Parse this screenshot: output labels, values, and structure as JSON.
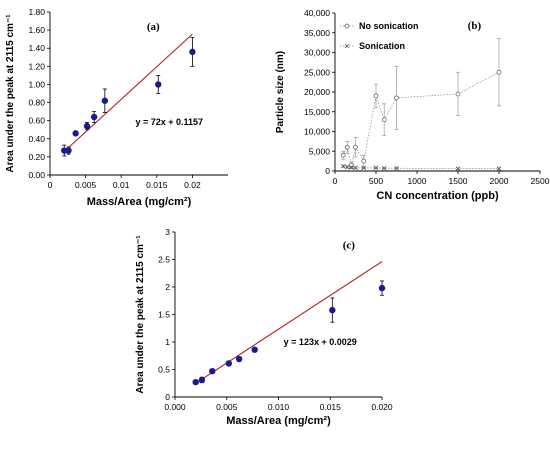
{
  "chart_data": [
    {
      "type": "scatter",
      "panel_label": "(a)",
      "xlabel": "Mass/Area (mg/cm²)",
      "ylabel": "Area under the peak at 2115 cm⁻¹",
      "xlim": [
        0,
        0.025
      ],
      "ylim": [
        0,
        1.8
      ],
      "xticks": [
        "0",
        "0.005",
        "0.01",
        "0.015",
        "0.02"
      ],
      "xtick_values": [
        0,
        0.005,
        0.01,
        0.015,
        0.02
      ],
      "yticks": [
        "0.00",
        "0.20",
        "0.40",
        "0.60",
        "0.80",
        "1.00",
        "1.20",
        "1.40",
        "1.60",
        "1.80"
      ],
      "ytick_values": [
        0,
        0.2,
        0.4,
        0.6,
        0.8,
        1.0,
        1.2,
        1.4,
        1.6,
        1.8
      ],
      "grid": false,
      "points": [
        {
          "x": 0.002,
          "y": 0.27,
          "err": 0.06
        },
        {
          "x": 0.0026,
          "y": 0.27,
          "err": 0.04
        },
        {
          "x": 0.0036,
          "y": 0.46,
          "err": 0.02
        },
        {
          "x": 0.0052,
          "y": 0.54,
          "err": 0.04
        },
        {
          "x": 0.0062,
          "y": 0.64,
          "err": 0.06
        },
        {
          "x": 0.0077,
          "y": 0.82,
          "err": 0.13
        },
        {
          "x": 0.0152,
          "y": 1.0,
          "err": 0.1
        },
        {
          "x": 0.02,
          "y": 1.36,
          "err": 0.16
        }
      ],
      "fit": {
        "slope": 72,
        "intercept": 0.1157,
        "x_range": [
          0.002,
          0.02
        ]
      },
      "equation": "y = 72x + 0.1157",
      "colors": {
        "marker": "#1a1a8c",
        "fit": "#b22222"
      }
    },
    {
      "type": "line",
      "panel_label": "(b)",
      "xlabel": "CN concentration (ppb)",
      "ylabel": "Particle size (nm)",
      "xlim": [
        0,
        2500
      ],
      "ylim": [
        0,
        40000
      ],
      "xticks": [
        "0",
        "500",
        "1000",
        "1500",
        "2000",
        "2500"
      ],
      "xtick_values": [
        0,
        500,
        1000,
        1500,
        2000,
        2500
      ],
      "yticks": [
        "0",
        "5,000",
        "10,000",
        "15,000",
        "20,000",
        "25,000",
        "30,000",
        "35,000",
        "40,000"
      ],
      "ytick_values": [
        0,
        5000,
        10000,
        15000,
        20000,
        25000,
        30000,
        35000,
        40000
      ],
      "grid": false,
      "legend_position": "top-left",
      "series": [
        {
          "name": "No sonication",
          "marker": "circle",
          "x": [
            100,
            150,
            200,
            250,
            350,
            500,
            600,
            750,
            1500,
            2000
          ],
          "y": [
            4000,
            6000,
            1500,
            6000,
            2500,
            19000,
            13000,
            18500,
            19500,
            25000
          ],
          "err": [
            1000,
            1500,
            800,
            2500,
            1500,
            3000,
            4000,
            8000,
            5500,
            8500
          ]
        },
        {
          "name": "Sonication",
          "marker": "x",
          "x": [
            100,
            150,
            200,
            250,
            350,
            500,
            600,
            750,
            1500,
            2000
          ],
          "y": [
            1200,
            1000,
            900,
            800,
            800,
            800,
            700,
            700,
            600,
            600
          ],
          "err": [
            300,
            300,
            300,
            200,
            200,
            200,
            200,
            200,
            200,
            200
          ]
        }
      ],
      "colors": {
        "series": "#888888"
      }
    },
    {
      "type": "scatter",
      "panel_label": "(c)",
      "xlabel": "Mass/Area (mg/cm²)",
      "ylabel": "Area under the peak at 2115 cm⁻¹",
      "xlim": [
        0,
        0.02
      ],
      "ylim": [
        0,
        3
      ],
      "xticks": [
        "0.000",
        "0.005",
        "0.010",
        "0.015",
        "0.020"
      ],
      "xtick_values": [
        0,
        0.005,
        0.01,
        0.015,
        0.02
      ],
      "yticks": [
        "0",
        "0.5",
        "1",
        "1.5",
        "2",
        "2.5",
        "3"
      ],
      "ytick_values": [
        0,
        0.5,
        1,
        1.5,
        2,
        2.5,
        3
      ],
      "grid": false,
      "points": [
        {
          "x": 0.002,
          "y": 0.27,
          "err": 0.03
        },
        {
          "x": 0.0026,
          "y": 0.31,
          "err": 0.05
        },
        {
          "x": 0.0036,
          "y": 0.47,
          "err": 0.03
        },
        {
          "x": 0.0052,
          "y": 0.61,
          "err": 0.04
        },
        {
          "x": 0.0062,
          "y": 0.69,
          "err": 0.04
        },
        {
          "x": 0.0077,
          "y": 0.86,
          "err": 0.04
        },
        {
          "x": 0.0152,
          "y": 1.58,
          "err": 0.22
        },
        {
          "x": 0.02,
          "y": 1.98,
          "err": 0.13
        }
      ],
      "fit": {
        "slope": 123,
        "intercept": 0.0029,
        "x_range": [
          0.002,
          0.02
        ]
      },
      "equation": "y = 123x + 0.0029",
      "colors": {
        "marker": "#1a1a8c",
        "fit": "#b22222"
      }
    }
  ]
}
